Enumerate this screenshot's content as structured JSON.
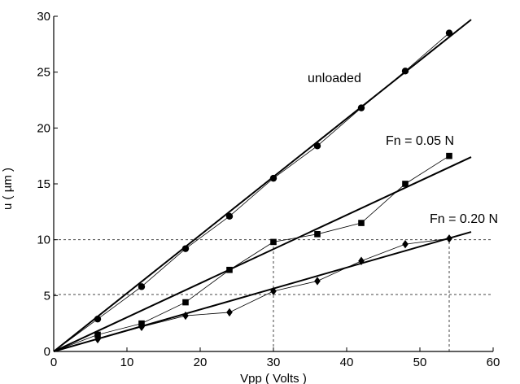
{
  "chart_data": {
    "type": "line",
    "xlabel": "Vpp ( Volts )",
    "ylabel": "u ( µm )",
    "xlim": [
      0,
      60
    ],
    "ylim": [
      0,
      30
    ],
    "xticks": [
      0,
      10,
      20,
      30,
      40,
      50,
      60
    ],
    "yticks": [
      0,
      5,
      10,
      15,
      20,
      25,
      30
    ],
    "x": [
      6,
      12,
      18,
      24,
      30,
      36,
      42,
      48,
      54
    ],
    "grid": false,
    "series": [
      {
        "name": "unloaded",
        "marker": "circle",
        "values": [
          2.9,
          5.8,
          9.2,
          12.1,
          15.5,
          18.4,
          21.8,
          25.1,
          28.5
        ],
        "fit": {
          "x": [
            0,
            57
          ],
          "y": [
            0,
            29.7
          ]
        }
      },
      {
        "name": "Fn = 0.05 N",
        "marker": "square",
        "values": [
          1.5,
          2.5,
          4.4,
          7.3,
          9.8,
          10.5,
          11.5,
          15.0,
          17.5
        ],
        "fit": {
          "x": [
            0,
            57
          ],
          "y": [
            0,
            17.4
          ]
        }
      },
      {
        "name": "Fn = 0.20 N",
        "marker": "diamond",
        "values": [
          1.1,
          2.2,
          3.2,
          3.5,
          5.4,
          6.3,
          8.1,
          9.6,
          10.1
        ],
        "fit": {
          "x": [
            0,
            57
          ],
          "y": [
            0,
            10.7
          ]
        }
      }
    ],
    "reference_lines": {
      "horizontal": [
        5.1,
        10.0
      ],
      "vertical": [
        30,
        54
      ]
    },
    "colors": {
      "line": "#000000",
      "reference": "#444444"
    }
  }
}
